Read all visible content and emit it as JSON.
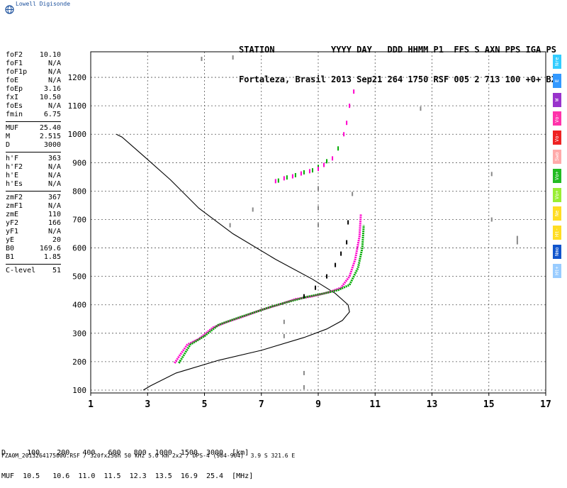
{
  "brand": "Lowell Digisonde",
  "header": {
    "line1": "STATION           YYYY DAY   DDD HHMM P1  FFS S AXN PPS IGA PS",
    "line2": "Fortaleza, Brasil 2013 Sep21 264 1750 RSF 005 2 713 100 +0+ B2"
  },
  "params": [
    {
      "k": "foF2",
      "v": "10.10"
    },
    {
      "k": "foF1",
      "v": "N/A"
    },
    {
      "k": "foF1p",
      "v": "N/A"
    },
    {
      "k": "foE",
      "v": "N/A"
    },
    {
      "k": "foEp",
      "v": "3.16"
    },
    {
      "k": "fxI",
      "v": "10.50"
    },
    {
      "k": "foEs",
      "v": "N/A"
    },
    {
      "k": "fmin",
      "v": "6.75"
    },
    {
      "k": "MUF",
      "v": "25.40"
    },
    {
      "k": "M",
      "v": "2.515"
    },
    {
      "k": "D",
      "v": "3000"
    },
    {
      "k": "h'F",
      "v": "363"
    },
    {
      "k": "h'F2",
      "v": "N/A"
    },
    {
      "k": "h'E",
      "v": "N/A"
    },
    {
      "k": "h'Es",
      "v": "N/A"
    },
    {
      "k": "zmF2",
      "v": "367"
    },
    {
      "k": "zmF1",
      "v": "N/A"
    },
    {
      "k": "zmE",
      "v": "110"
    },
    {
      "k": "yF2",
      "v": "166"
    },
    {
      "k": "yF1",
      "v": "N/A"
    },
    {
      "k": "yE",
      "v": "20"
    },
    {
      "k": "B0",
      "v": "169.6"
    },
    {
      "k": "B1",
      "v": "1.85"
    },
    {
      "k": "C-level",
      "v": "51"
    }
  ],
  "legend": [
    {
      "label": "Nre",
      "color": "#33ccff"
    },
    {
      "label": "E",
      "color": "#3399ff"
    },
    {
      "label": "W",
      "color": "#9933cc"
    },
    {
      "label": "Vo-",
      "color": "#ff33aa"
    },
    {
      "label": "Vo-",
      "color": "#ee2222"
    },
    {
      "label": "Swo",
      "color": "#ffaaaa"
    },
    {
      "label": "Vo+",
      "color": "#22bb22"
    },
    {
      "label": "Vo+",
      "color": "#99ee33"
    },
    {
      "label": "Ne",
      "color": "#ffdd22"
    },
    {
      "label": "Ht-",
      "color": "#ffdd22"
    },
    {
      "label": "Nmo",
      "color": "#1155cc"
    },
    {
      "label": "Ht+",
      "color": "#99ccff"
    }
  ],
  "distance_table": {
    "line1": "D     100    200   400   600   800  1000  1500  3000  [km]",
    "line2": "MUF  10.5   10.6  11.0  11.5  12.3  13.5  16.9  25.4  [MHz]"
  },
  "footer": "FZA0M_2013264175000.RSF / 320fx256h 50 kHz 5.0 km 2x2 / DPS-4 (904-904)  3.9 S 321.6 E",
  "chart_data": {
    "type": "scatter",
    "xlim": [
      1,
      17
    ],
    "ylim": [
      90,
      1290
    ],
    "xticks": [
      "1",
      "3",
      "5",
      "7",
      "9",
      "11",
      "13",
      "15",
      "17"
    ],
    "yticks": [
      "100",
      "200",
      "300",
      "400",
      "500",
      "600",
      "700",
      "800",
      "900",
      "1000",
      "1100",
      "1200"
    ],
    "grid": true,
    "series": [
      {
        "name": "",
        "color": "#000000",
        "kind": "line",
        "points": [
          [
            2.85,
            100
          ],
          [
            3.1,
            115
          ],
          [
            4.0,
            160
          ],
          [
            5.5,
            205
          ],
          [
            7.0,
            240
          ],
          [
            8.5,
            285
          ],
          [
            9.3,
            315
          ],
          [
            9.85,
            345
          ],
          [
            10.1,
            375
          ],
          [
            10.05,
            400
          ],
          [
            9.6,
            440
          ],
          [
            8.8,
            490
          ],
          [
            7.5,
            560
          ],
          [
            6.0,
            650
          ],
          [
            4.8,
            740
          ],
          [
            3.8,
            840
          ],
          [
            2.9,
            920
          ],
          [
            2.1,
            990
          ],
          [
            1.9,
            1000
          ]
        ]
      },
      {
        "name": "",
        "color": "#ff00cc",
        "kind": "trace",
        "points": [
          [
            3.95,
            195
          ],
          [
            4.15,
            225
          ],
          [
            4.4,
            260
          ],
          [
            4.8,
            280
          ],
          [
            5.3,
            320
          ],
          [
            5.8,
            340
          ],
          [
            6.4,
            360
          ],
          [
            7.0,
            382
          ],
          [
            7.6,
            400
          ],
          [
            8.2,
            420
          ],
          [
            8.8,
            430
          ],
          [
            9.4,
            445
          ],
          [
            9.8,
            460
          ],
          [
            10.1,
            500
          ],
          [
            10.3,
            560
          ],
          [
            10.45,
            640
          ],
          [
            10.5,
            720
          ]
        ]
      },
      {
        "name": "",
        "color": "#00aa00",
        "kind": "trace",
        "points": [
          [
            4.1,
            195
          ],
          [
            4.5,
            260
          ],
          [
            5.0,
            290
          ],
          [
            5.5,
            330
          ],
          [
            6.2,
            355
          ],
          [
            6.8,
            375
          ],
          [
            7.4,
            395
          ],
          [
            8.0,
            412
          ],
          [
            8.6,
            428
          ],
          [
            9.2,
            440
          ],
          [
            9.7,
            452
          ],
          [
            10.1,
            470
          ],
          [
            10.4,
            530
          ],
          [
            10.55,
            600
          ],
          [
            10.6,
            680
          ]
        ]
      },
      {
        "name": "",
        "color": "#000000",
        "kind": "dots",
        "points": [
          [
            8.5,
            430
          ],
          [
            8.9,
            460
          ],
          [
            9.3,
            500
          ],
          [
            9.6,
            540
          ],
          [
            9.8,
            580
          ],
          [
            10.0,
            620
          ],
          [
            10.05,
            690
          ]
        ]
      },
      {
        "name": "",
        "color": "#00aa00",
        "kind": "dots",
        "points": [
          [
            7.6,
            837
          ],
          [
            7.9,
            848
          ],
          [
            8.2,
            856
          ],
          [
            8.5,
            866
          ],
          [
            8.8,
            873
          ],
          [
            9.0,
            885
          ],
          [
            9.3,
            905
          ],
          [
            9.7,
            950
          ]
        ]
      },
      {
        "name": "",
        "color": "#ff00cc",
        "kind": "dots",
        "points": [
          [
            7.5,
            835
          ],
          [
            7.8,
            845
          ],
          [
            8.1,
            852
          ],
          [
            8.4,
            862
          ],
          [
            8.7,
            870
          ],
          [
            9.0,
            878
          ],
          [
            9.2,
            892
          ],
          [
            9.5,
            915
          ],
          [
            9.9,
            1000
          ],
          [
            10.0,
            1040
          ],
          [
            10.1,
            1100
          ],
          [
            10.25,
            1150
          ]
        ]
      },
      {
        "name": "",
        "color": "#888888",
        "kind": "dots",
        "points": [
          [
            4.9,
            1265
          ],
          [
            6.0,
            1270
          ],
          [
            7.8,
            340
          ],
          [
            7.8,
            290
          ],
          [
            8.5,
            160
          ],
          [
            8.5,
            110
          ],
          [
            9.0,
            810
          ],
          [
            9.0,
            740
          ],
          [
            9.0,
            680
          ],
          [
            5.9,
            680
          ],
          [
            6.7,
            735
          ],
          [
            15.1,
            700
          ],
          [
            15.1,
            860
          ],
          [
            16.0,
            635
          ],
          [
            16.0,
            620
          ],
          [
            12.6,
            1090
          ],
          [
            10.2,
            790
          ]
        ]
      }
    ]
  }
}
